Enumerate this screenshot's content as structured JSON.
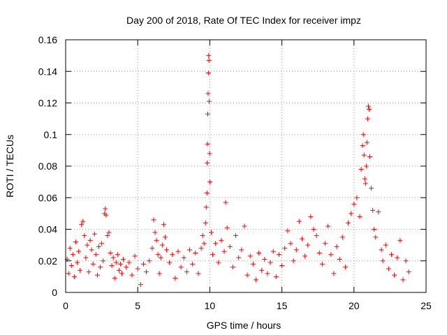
{
  "chart_data": {
    "type": "scatter",
    "title": "Day 200 of 2018, Rate Of TEC Index for receiver impz",
    "xlabel": "GPS time / hours",
    "ylabel": "ROTI / TECUs",
    "xlim": [
      0,
      25
    ],
    "ylim": [
      0,
      0.16
    ],
    "xticks": [
      0,
      5,
      10,
      15,
      20,
      25
    ],
    "xtick_labels": [
      "0",
      "5",
      "10",
      "15",
      "20",
      "25"
    ],
    "yticks": [
      0,
      0.02,
      0.04,
      0.06,
      0.08,
      0.1,
      0.12,
      0.14,
      0.16
    ],
    "ytick_labels": [
      "0",
      "0.02",
      "0.04",
      "0.06",
      "0.08",
      "0.1",
      "0.12",
      "0.14",
      "0.16"
    ],
    "grid": true,
    "marker": "+",
    "color": "#ff0000",
    "series": [
      {
        "name": "ROTI",
        "points": [
          [
            0.1,
            0.021
          ],
          [
            0.2,
            0.012
          ],
          [
            0.3,
            0.028
          ],
          [
            0.4,
            0.017
          ],
          [
            0.5,
            0.024
          ],
          [
            0.6,
            0.01
          ],
          [
            0.7,
            0.032
          ],
          [
            0.8,
            0.019
          ],
          [
            0.9,
            0.026
          ],
          [
            1.0,
            0.014
          ],
          [
            1.1,
            0.043
          ],
          [
            1.2,
            0.045
          ],
          [
            1.3,
            0.036
          ],
          [
            1.4,
            0.022
          ],
          [
            1.5,
            0.03
          ],
          [
            1.6,
            0.013
          ],
          [
            1.7,
            0.033
          ],
          [
            1.8,
            0.027
          ],
          [
            1.9,
            0.018
          ],
          [
            2.0,
            0.037
          ],
          [
            2.1,
            0.024
          ],
          [
            2.2,
            0.011
          ],
          [
            2.3,
            0.029
          ],
          [
            2.4,
            0.016
          ],
          [
            2.5,
            0.031
          ],
          [
            2.6,
            0.02
          ],
          [
            2.7,
            0.05
          ],
          [
            2.75,
            0.053
          ],
          [
            2.8,
            0.049
          ],
          [
            2.9,
            0.036
          ],
          [
            3.0,
            0.038
          ],
          [
            3.1,
            0.025
          ],
          [
            3.2,
            0.017
          ],
          [
            3.3,
            0.022
          ],
          [
            3.4,
            0.009
          ],
          [
            3.5,
            0.019
          ],
          [
            3.6,
            0.024
          ],
          [
            3.7,
            0.014
          ],
          [
            3.8,
            0.018
          ],
          [
            3.9,
            0.012
          ],
          [
            4.0,
            0.021
          ],
          [
            4.2,
            0.016
          ],
          [
            4.4,
            0.019
          ],
          [
            4.6,
            0.011
          ],
          [
            4.8,
            0.023
          ],
          [
            5.0,
            0.015
          ],
          [
            5.2,
            0.005
          ],
          [
            5.4,
            0.018
          ],
          [
            5.6,
            0.013
          ],
          [
            5.8,
            0.02
          ],
          [
            6.0,
            0.028
          ],
          [
            6.1,
            0.046
          ],
          [
            6.2,
            0.038
          ],
          [
            6.3,
            0.033
          ],
          [
            6.4,
            0.024
          ],
          [
            6.5,
            0.012
          ],
          [
            6.6,
            0.022
          ],
          [
            6.7,
            0.03
          ],
          [
            6.8,
            0.043
          ],
          [
            6.9,
            0.035
          ],
          [
            7.0,
            0.027
          ],
          [
            7.2,
            0.019
          ],
          [
            7.4,
            0.024
          ],
          [
            7.6,
            0.009
          ],
          [
            7.8,
            0.026
          ],
          [
            8.0,
            0.016
          ],
          [
            8.2,
            0.022
          ],
          [
            8.4,
            0.013
          ],
          [
            8.6,
            0.027
          ],
          [
            8.8,
            0.018
          ],
          [
            9.0,
            0.025
          ],
          [
            9.2,
            0.012
          ],
          [
            9.4,
            0.028
          ],
          [
            9.5,
            0.036
          ],
          [
            9.6,
            0.031
          ],
          [
            9.7,
            0.044
          ],
          [
            9.75,
            0.054
          ],
          [
            9.8,
            0.063
          ],
          [
            9.82,
            0.082
          ],
          [
            9.84,
            0.094
          ],
          [
            9.86,
            0.113
          ],
          [
            9.88,
            0.126
          ],
          [
            9.9,
            0.139
          ],
          [
            9.92,
            0.15
          ],
          [
            9.94,
            0.147
          ],
          [
            9.96,
            0.121
          ],
          [
            9.98,
            0.088
          ],
          [
            10.0,
            0.07
          ],
          [
            10.1,
            0.038
          ],
          [
            10.2,
            0.024
          ],
          [
            10.4,
            0.031
          ],
          [
            10.6,
            0.019
          ],
          [
            10.8,
            0.033
          ],
          [
            11.0,
            0.026
          ],
          [
            11.1,
            0.057
          ],
          [
            11.2,
            0.041
          ],
          [
            11.4,
            0.029
          ],
          [
            11.6,
            0.016
          ],
          [
            11.8,
            0.036
          ],
          [
            12.0,
            0.022
          ],
          [
            12.2,
            0.027
          ],
          [
            12.4,
            0.042
          ],
          [
            12.6,
            0.011
          ],
          [
            12.8,
            0.023
          ],
          [
            13.0,
            0.018
          ],
          [
            13.2,
            0.008
          ],
          [
            13.4,
            0.025
          ],
          [
            13.6,
            0.014
          ],
          [
            13.8,
            0.021
          ],
          [
            14.0,
            0.012
          ],
          [
            14.2,
            0.019
          ],
          [
            14.4,
            0.026
          ],
          [
            14.6,
            0.01
          ],
          [
            14.8,
            0.024
          ],
          [
            15.0,
            0.017
          ],
          [
            15.2,
            0.028
          ],
          [
            15.4,
            0.039
          ],
          [
            15.6,
            0.031
          ],
          [
            15.8,
            0.02
          ],
          [
            16.0,
            0.027
          ],
          [
            16.2,
            0.045
          ],
          [
            16.4,
            0.034
          ],
          [
            16.6,
            0.023
          ],
          [
            16.8,
            0.03
          ],
          [
            17.0,
            0.048
          ],
          [
            17.2,
            0.04
          ],
          [
            17.4,
            0.036
          ],
          [
            17.6,
            0.025
          ],
          [
            17.8,
            0.018
          ],
          [
            18.0,
            0.031
          ],
          [
            18.2,
            0.042
          ],
          [
            18.4,
            0.024
          ],
          [
            18.6,
            0.012
          ],
          [
            18.8,
            0.029
          ],
          [
            19.0,
            0.021
          ],
          [
            19.2,
            0.035
          ],
          [
            19.4,
            0.016
          ],
          [
            19.6,
            0.044
          ],
          [
            19.8,
            0.05
          ],
          [
            20.0,
            0.056
          ],
          [
            20.2,
            0.06
          ],
          [
            20.4,
            0.048
          ],
          [
            20.5,
            0.078
          ],
          [
            20.6,
            0.093
          ],
          [
            20.65,
            0.1
          ],
          [
            20.7,
            0.087
          ],
          [
            20.75,
            0.072
          ],
          [
            20.8,
            0.069
          ],
          [
            20.85,
            0.08
          ],
          [
            20.9,
            0.095
          ],
          [
            20.95,
            0.11
          ],
          [
            21.0,
            0.118
          ],
          [
            21.05,
            0.116
          ],
          [
            21.1,
            0.086
          ],
          [
            21.2,
            0.066
          ],
          [
            21.3,
            0.052
          ],
          [
            21.4,
            0.04
          ],
          [
            21.5,
            0.035
          ],
          [
            21.7,
            0.051
          ],
          [
            21.9,
            0.027
          ],
          [
            22.0,
            0.02
          ],
          [
            22.2,
            0.03
          ],
          [
            22.4,
            0.015
          ],
          [
            22.6,
            0.024
          ],
          [
            22.8,
            0.011
          ],
          [
            23.0,
            0.022
          ],
          [
            23.2,
            0.033
          ],
          [
            23.4,
            0.008
          ],
          [
            23.6,
            0.02
          ],
          [
            23.8,
            0.013
          ]
        ]
      }
    ]
  }
}
